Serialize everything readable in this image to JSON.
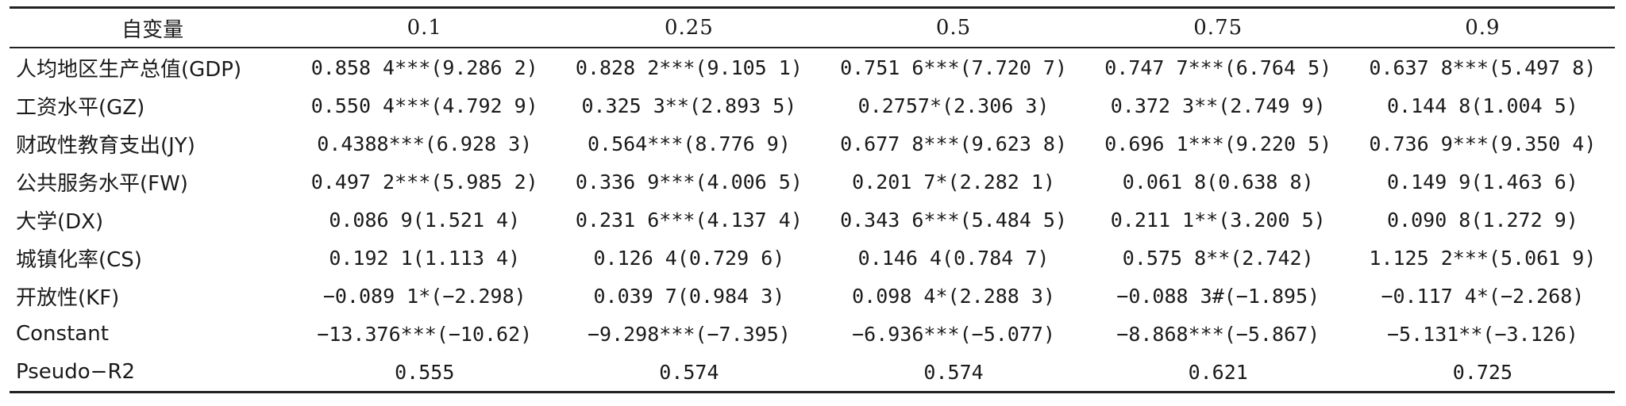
{
  "table": {
    "headers": [
      "自变量",
      "0.1",
      "0.25",
      "0.5",
      "0.75",
      "0.9"
    ],
    "rows": [
      [
        "人均地区生产总值(GDP)",
        "0.858 4***(9.286 2)",
        "0.828 2***(9.105 1)",
        "0.751 6***(7.720 7)",
        "0.747 7***(6.764 5)",
        "0.637 8***(5.497 8)"
      ],
      [
        "工资水平(GZ)",
        "0.550 4***(4.792 9)",
        "0.325 3**(2.893 5)",
        "0.2757*(2.306 3)",
        "0.372 3**(2.749 9)",
        "0.144 8(1.004 5)"
      ],
      [
        "财政性教育支出(JY)",
        "0.4388***(6.928 3)",
        "0.564***(8.776 9)",
        "0.677 8***(9.623 8)",
        "0.696 1***(9.220 5)",
        "0.736 9***(9.350 4)"
      ],
      [
        "公共服务水平(FW)",
        "0.497 2***(5.985 2)",
        "0.336 9***(4.006 5)",
        "0.201 7*(2.282 1)",
        "0.061 8(0.638 8)",
        "0.149 9(1.463 6)"
      ],
      [
        "大学(DX)",
        "0.086 9(1.521 4)",
        "0.231 6***(4.137 4)",
        "0.343 6***(5.484 5)",
        "0.211 1**(3.200 5)",
        "0.090 8(1.272 9)"
      ],
      [
        "城镇化率(CS)",
        "0.192 1(1.113 4)",
        "0.126 4(0.729 6)",
        "0.146 4(0.784 7)",
        "0.575 8**(2.742)",
        "1.125 2***(5.061 9)"
      ],
      [
        "开放性(KF)",
        "−0.089 1*(−2.298)",
        "0.039 7(0.984 3)",
        "0.098 4*(2.288 3)",
        "−0.088 3#(−1.895)",
        "−0.117 4*(−2.268)"
      ],
      [
        "Constant",
        "−13.376***(−10.62)",
        "−9.298***(−7.395)",
        "−6.936***(−5.077)",
        "−8.868***(−5.867)",
        "−5.131**(−3.126)"
      ],
      [
        "Pseudo−R2",
        "0.555",
        "0.574",
        "0.574",
        "0.621",
        "0.725"
      ]
    ]
  }
}
